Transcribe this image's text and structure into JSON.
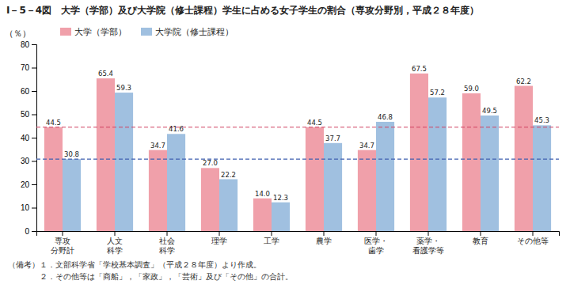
{
  "chart_data": {
    "type": "bar",
    "title": "I－5－4図　大学（学部）及び大学院（修士課程）学生に占める女子学生の割合（専攻分野別，平成２８年度）",
    "ylabel": "（％）",
    "categories": [
      "専攻\n分野計",
      "人文\n科学",
      "社会\n科学",
      "理学",
      "工学",
      "農学",
      "医学・\n歯学",
      "薬学・\n看護学等",
      "教育",
      "その他等"
    ],
    "series": [
      {
        "name": "大学（学部）",
        "color": "#f0a0aa",
        "values": [
          44.5,
          65.4,
          34.7,
          27.0,
          14.0,
          44.5,
          34.7,
          67.5,
          59.0,
          62.2
        ],
        "value_labels": [
          "44.5",
          "65.4",
          "34.7",
          "27.0",
          "14.0",
          "44.5",
          "34.7",
          "67.5",
          "59.0",
          "62.2"
        ]
      },
      {
        "name": "大学院（修士課程）",
        "color": "#a0c0e0",
        "values": [
          30.8,
          59.3,
          41.6,
          22.2,
          12.3,
          37.7,
          46.8,
          57.2,
          49.5,
          45.3
        ],
        "value_labels": [
          "30.8",
          "59.3",
          "41.6",
          "22.2",
          "12.3",
          "37.7",
          "46.8",
          "57.2",
          "49.5",
          "45.3"
        ]
      }
    ],
    "ylim": [
      0,
      80
    ],
    "yticks": [
      0,
      10,
      20,
      30,
      40,
      50,
      60,
      70,
      80
    ],
    "grid": false,
    "legend": "upper left",
    "data_labels": true,
    "reference_lines": [
      {
        "value": 44.5,
        "color": "#d04060",
        "line_style": "dashed"
      },
      {
        "value": 30.8,
        "color": "#4060b0",
        "line_style": "dashed"
      }
    ],
    "notes": [
      "（備考）１．文部科学省「学校基本調査」（平成２８年度）より作成。",
      "　　　　２．その他等は「商船」，「家政」，「芸術」及び「その他」の合計。"
    ]
  }
}
